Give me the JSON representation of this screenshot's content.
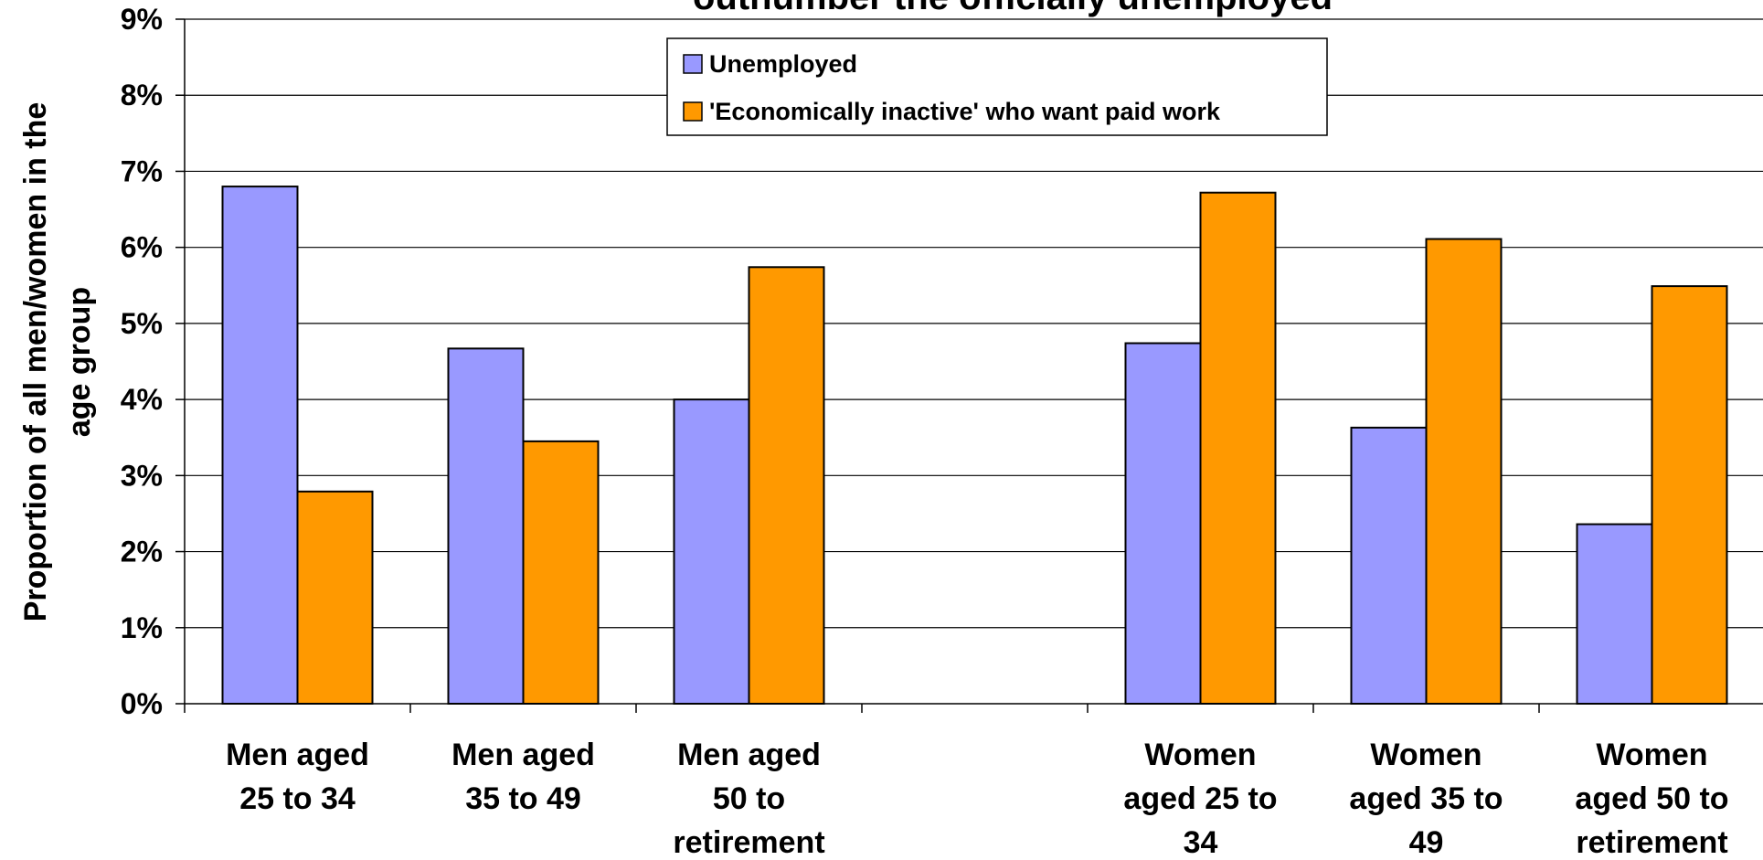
{
  "chart_data": {
    "type": "bar",
    "title": "outnumber the officially unemployed",
    "ylabel_lines": [
      "Proportion of all men/women in the",
      "age group"
    ],
    "xlabel": "",
    "ylim": [
      0,
      9
    ],
    "y_ticks": [
      "0%",
      "1%",
      "2%",
      "3%",
      "4%",
      "5%",
      "6%",
      "7%",
      "8%",
      "9%"
    ],
    "grid": true,
    "legend_position": "top-center",
    "categories": [
      [
        "Men aged",
        "25 to 34"
      ],
      [
        "Men aged",
        "35 to 49"
      ],
      [
        "Men aged",
        "50 to",
        "retirement"
      ],
      [],
      [
        "Women",
        "aged 25 to",
        "34"
      ],
      [
        "Women",
        "aged 35 to",
        "49"
      ],
      [
        "Women",
        "aged 50 to",
        "retirement"
      ]
    ],
    "series": [
      {
        "name": "Unemployed",
        "color": "#9999ff",
        "values": [
          6.8,
          4.67,
          4.0,
          null,
          4.74,
          3.63,
          2.36
        ]
      },
      {
        "name": "'Economically inactive' who want paid work",
        "color": "#ff9900",
        "values": [
          2.79,
          3.45,
          5.74,
          null,
          6.72,
          6.11,
          5.49
        ]
      }
    ]
  }
}
